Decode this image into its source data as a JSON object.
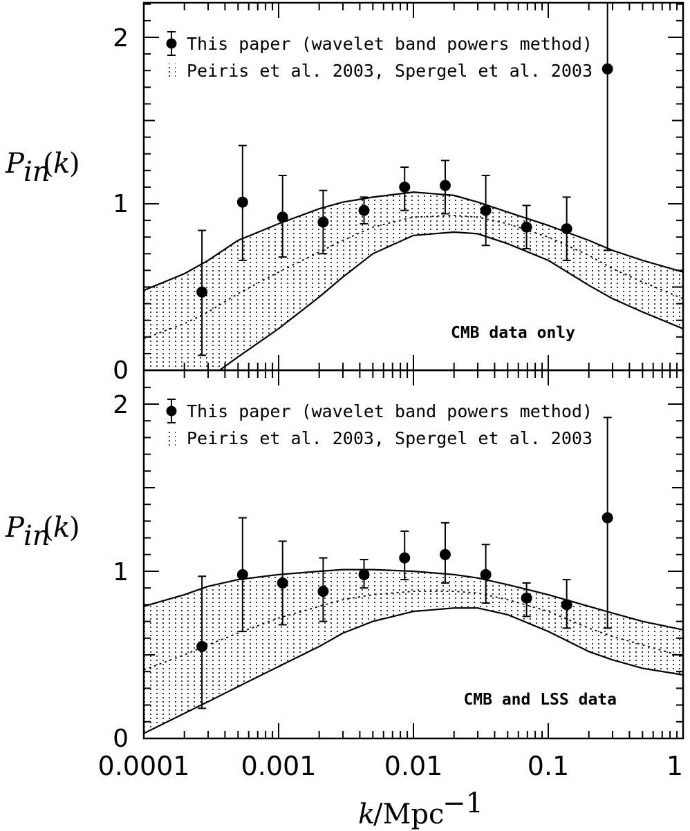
{
  "chart_data": [
    {
      "type": "scatter",
      "annotation": "CMB data only",
      "ylabel": "P_in(k)",
      "xscale": "log",
      "xlim": [
        0.0001,
        1
      ],
      "ylim": [
        0,
        2.25
      ],
      "yticks": [
        "0",
        "1",
        "2"
      ],
      "legend": {
        "placement": "top-left",
        "entries": [
          "This paper (wavelet band powers method)",
          "Peiris et al. 2003, Spergel et al. 2003"
        ]
      },
      "series": [
        {
          "name": "This paper (wavelet band powers method)",
          "x": [
            0.00027,
            0.00054,
            0.00107,
            0.00214,
            0.0043,
            0.0086,
            0.0172,
            0.0344,
            0.069,
            0.137,
            0.275
          ],
          "y": [
            0.47,
            1.01,
            0.92,
            0.89,
            0.96,
            1.1,
            1.11,
            0.96,
            0.86,
            0.85,
            1.81
          ],
          "y_err_high": [
            0.84,
            1.35,
            1.17,
            1.08,
            1.04,
            1.22,
            1.26,
            1.17,
            0.99,
            1.04,
            2.25
          ],
          "y_err_low": [
            0.09,
            0.66,
            0.68,
            0.7,
            0.88,
            0.96,
            0.94,
            0.75,
            0.73,
            0.66,
            0.72
          ]
        },
        {
          "name": "Peiris et al. 2003, Spergel et al. 2003",
          "x": [
            0.0001,
            0.0002,
            0.0003,
            0.0005,
            0.001,
            0.002,
            0.003,
            0.005,
            0.01,
            0.02,
            0.03,
            0.05,
            0.1,
            0.2,
            0.3,
            0.5,
            1
          ],
          "upper": [
            0.48,
            0.58,
            0.66,
            0.78,
            0.88,
            0.97,
            1.01,
            1.04,
            1.07,
            1.05,
            1.01,
            0.95,
            0.87,
            0.78,
            0.72,
            0.66,
            0.59
          ],
          "central": [
            0.19,
            0.28,
            0.35,
            0.46,
            0.59,
            0.71,
            0.78,
            0.86,
            0.92,
            0.93,
            0.92,
            0.88,
            0.8,
            0.69,
            0.61,
            0.53,
            0.43
          ],
          "lower": [
            -0.38,
            -0.18,
            -0.05,
            0.08,
            0.25,
            0.44,
            0.56,
            0.7,
            0.81,
            0.83,
            0.82,
            0.76,
            0.66,
            0.51,
            0.43,
            0.35,
            0.25
          ]
        }
      ]
    },
    {
      "type": "scatter",
      "annotation": "CMB and LSS data",
      "ylabel": "P_in(k)",
      "xlabel": "k/Mpc^-1",
      "xscale": "log",
      "xlim": [
        0.0001,
        1
      ],
      "ylim": [
        0,
        2.25
      ],
      "yticks": [
        "0",
        "1",
        "2"
      ],
      "xticks": [
        "0.0001",
        "0.001",
        "0.01",
        "0.1",
        "1"
      ],
      "legend": {
        "placement": "top-left",
        "entries": [
          "This paper (wavelet band powers method)",
          "Peiris et al. 2003, Spergel et al. 2003"
        ]
      },
      "series": [
        {
          "name": "This paper (wavelet band powers method)",
          "x": [
            0.00027,
            0.00054,
            0.00107,
            0.00214,
            0.0043,
            0.0086,
            0.0172,
            0.0344,
            0.069,
            0.137,
            0.275
          ],
          "y": [
            0.55,
            0.98,
            0.93,
            0.88,
            0.98,
            1.08,
            1.1,
            0.98,
            0.84,
            0.8,
            1.32
          ],
          "y_err_high": [
            0.97,
            1.32,
            1.18,
            1.08,
            1.07,
            1.24,
            1.29,
            1.16,
            0.93,
            0.95,
            1.92
          ],
          "y_err_low": [
            0.18,
            0.64,
            0.68,
            0.7,
            0.9,
            0.95,
            0.93,
            0.81,
            0.73,
            0.66,
            0.66
          ]
        },
        {
          "name": "Peiris et al. 2003, Spergel et al. 2003",
          "x": [
            0.0001,
            0.0002,
            0.0003,
            0.0005,
            0.001,
            0.002,
            0.003,
            0.005,
            0.01,
            0.02,
            0.03,
            0.05,
            0.1,
            0.2,
            0.3,
            0.5,
            1
          ],
          "upper": [
            0.79,
            0.86,
            0.91,
            0.95,
            0.98,
            1.0,
            1.01,
            1.01,
            1.0,
            0.98,
            0.96,
            0.92,
            0.86,
            0.79,
            0.75,
            0.7,
            0.65
          ],
          "central": [
            0.41,
            0.5,
            0.56,
            0.63,
            0.72,
            0.79,
            0.83,
            0.86,
            0.88,
            0.88,
            0.87,
            0.83,
            0.76,
            0.66,
            0.61,
            0.56,
            0.49
          ],
          "lower": [
            0.03,
            0.15,
            0.22,
            0.31,
            0.43,
            0.55,
            0.63,
            0.7,
            0.76,
            0.78,
            0.78,
            0.74,
            0.64,
            0.52,
            0.47,
            0.42,
            0.38
          ]
        }
      ]
    }
  ]
}
